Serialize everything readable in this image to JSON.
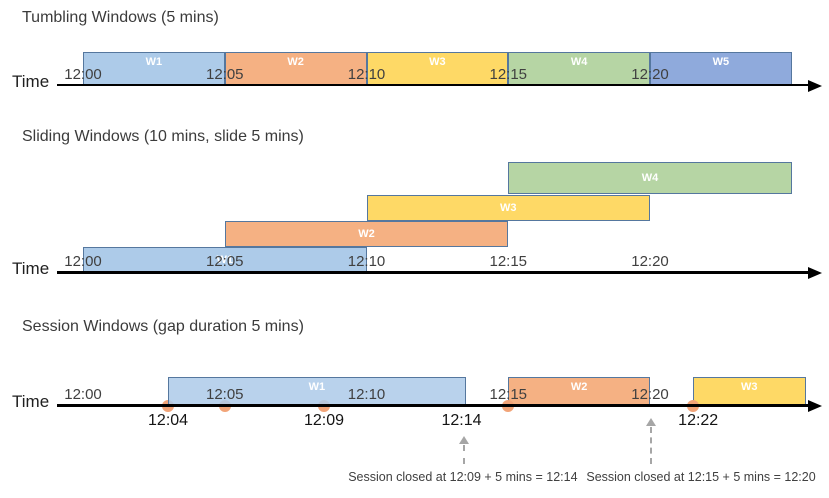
{
  "figure": {
    "axis_label": "Time",
    "colors": {
      "window_blue": "#ADCBE9",
      "window_orange": "#F5B183",
      "window_yellow": "#FED966",
      "window_green": "#B6D5A4",
      "window_royal": "#8FAADC",
      "box_border": "#55779E",
      "event_dot": "#F2A478",
      "timeline": "#000000",
      "tick_text": "#404040",
      "annotation_text": "#404040",
      "dashed_arrow": "#A6A6A6"
    },
    "sections": [
      {
        "key": "tumbling",
        "title": "Tumbling Windows (5 mins)",
        "ticks": [
          {
            "label": "12:00",
            "t": 0
          },
          {
            "label": "12:05",
            "t": 5
          },
          {
            "label": "12:10",
            "t": 10
          },
          {
            "label": "12:15",
            "t": 15
          },
          {
            "label": "12:20",
            "t": 20
          }
        ],
        "windows": [
          {
            "label": "W1",
            "start": 0,
            "end": 5,
            "color": "window_blue"
          },
          {
            "label": "W2",
            "start": 5,
            "end": 10,
            "color": "window_orange"
          },
          {
            "label": "W3",
            "start": 10,
            "end": 15,
            "color": "window_yellow"
          },
          {
            "label": "W4",
            "start": 15,
            "end": 20,
            "color": "window_green"
          },
          {
            "label": "W5",
            "start": 20,
            "end": 25,
            "color": "window_royal"
          }
        ]
      },
      {
        "key": "sliding",
        "title": "Sliding Windows (10 mins, slide 5 mins)",
        "ticks": [
          {
            "label": "12:00",
            "t": 0
          },
          {
            "label": "12:05",
            "t": 5
          },
          {
            "label": "12:10",
            "t": 10
          },
          {
            "label": "12:15",
            "t": 15
          },
          {
            "label": "12:20",
            "t": 20
          }
        ],
        "windows": [
          {
            "label": "W1",
            "start": 0,
            "end": 10,
            "color": "window_blue",
            "level": 0
          },
          {
            "label": "W2",
            "start": 5,
            "end": 15,
            "color": "window_orange",
            "level": 1
          },
          {
            "label": "W3",
            "start": 10,
            "end": 20,
            "color": "window_yellow",
            "level": 2
          },
          {
            "label": "W4",
            "start": 15,
            "end": 25,
            "color": "window_green",
            "level": 3
          }
        ]
      },
      {
        "key": "session",
        "title": "Session Windows (gap duration 5 mins)",
        "ticks": [
          {
            "label": "12:00",
            "t": 0
          },
          {
            "label": "12:05",
            "t": 5
          },
          {
            "label": "12:10",
            "t": 10
          },
          {
            "label": "12:15",
            "t": 15
          },
          {
            "label": "12:20",
            "t": 20
          }
        ],
        "windows": [
          {
            "label": "W1",
            "start": 3,
            "end": 13.5,
            "color": "window_blue",
            "translucent": true
          },
          {
            "label": "W2",
            "start": 15,
            "end": 20,
            "color": "window_orange"
          },
          {
            "label": "W3",
            "start": 21.5,
            "end": 25.5,
            "color": "window_yellow"
          }
        ],
        "events": [
          {
            "t": 3,
            "front": false
          },
          {
            "t": 5,
            "front": false
          },
          {
            "t": 8.5,
            "front": false
          },
          {
            "t": 15,
            "front": true
          },
          {
            "t": 21.5,
            "front": true
          }
        ],
        "event_labels": [
          {
            "label": "12:04",
            "t": 3
          },
          {
            "label": "12:09",
            "t": 8.5
          },
          {
            "label": "12:14",
            "t": 13.35
          },
          {
            "label": "12:22",
            "t": 21.7
          }
        ],
        "callouts": [
          {
            "text": "Session closed at 12:09 + 5 mins = 12:14",
            "arrow_t": 13.45,
            "text_t": 13.4
          },
          {
            "text": "Session closed at 12:15 + 5 mins = 12:20",
            "arrow_t": 20.05,
            "text_t": 21.8
          }
        ]
      }
    ]
  }
}
